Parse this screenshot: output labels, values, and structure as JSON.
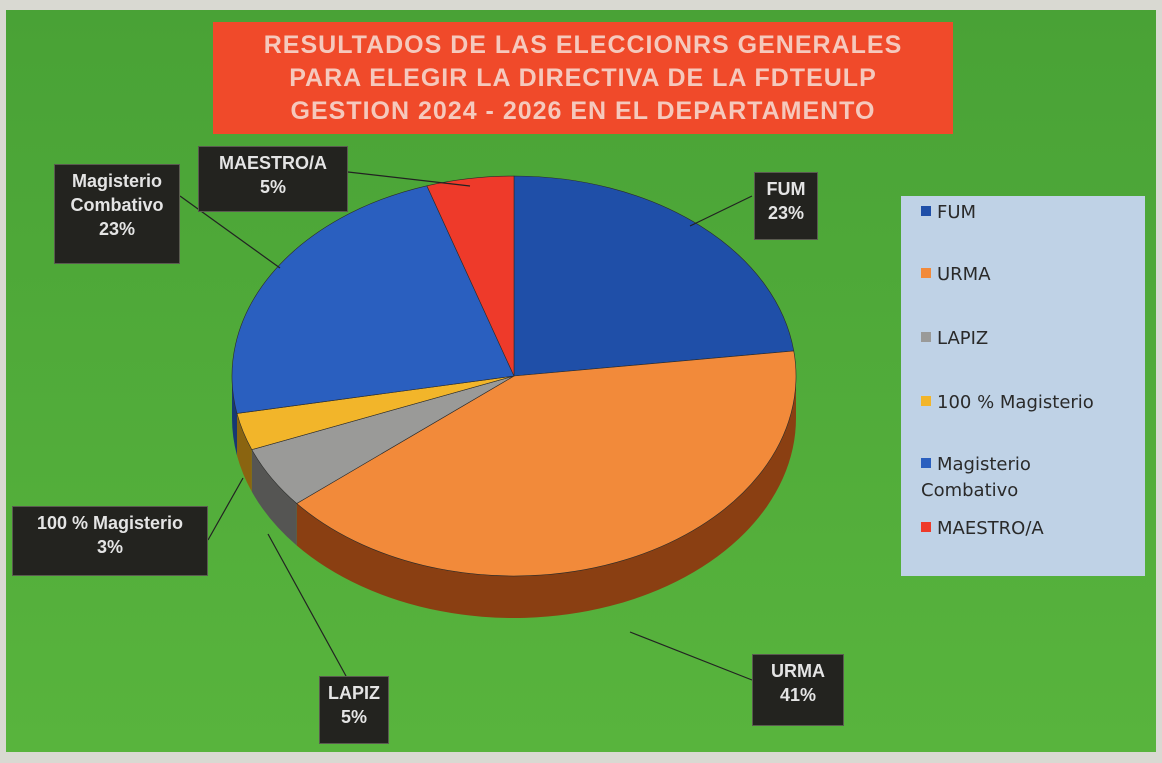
{
  "chart_data": {
    "type": "pie",
    "title_lines": [
      "RESULTADOS DE LAS ELECCIONRS GENERALES",
      "PARA ELEGIR LA DIRECTIVA DE LA FDTEULP",
      "GESTION 2024 - 2026 EN EL DEPARTAMENTO"
    ],
    "slices": [
      {
        "name": "FUM",
        "legend": "FUM",
        "label_lines": [
          "FUM"
        ],
        "value": 23,
        "value_label": "23%",
        "color": "#1f4fa8",
        "side": "#142f66"
      },
      {
        "name": "URMA",
        "legend": "URMA",
        "label_lines": [
          "URMA"
        ],
        "value": 41,
        "value_label": "41%",
        "color": "#f28a3a",
        "side": "#8a3f12"
      },
      {
        "name": "LAPIZ",
        "legend": "LAPIZ",
        "label_lines": [
          "LAPIZ"
        ],
        "value": 5,
        "value_label": "5%",
        "color": "#9a9a98",
        "side": "#555553"
      },
      {
        "name": "100 % Magisterio",
        "legend": "100 % Magisterio",
        "label_lines": [
          "100 % Magisterio"
        ],
        "value": 3,
        "value_label": "3%",
        "color": "#f2b52a",
        "side": "#8a6410"
      },
      {
        "name": "Magisterio Combativo",
        "legend": "Magisterio Combativo",
        "label_lines": [
          "Magisterio",
          "Combativo"
        ],
        "value": 23,
        "value_label": "23%",
        "color": "#2a5fbf",
        "side": "#173873"
      },
      {
        "name": "MAESTRO/A",
        "legend": "MAESTRO/A",
        "label_lines": [
          "MAESTRO/A"
        ],
        "value": 5,
        "value_label": "5%",
        "color": "#ee3a2a",
        "side": "#851a10"
      }
    ],
    "legend_position": "right",
    "background_color": "#4fa83a"
  }
}
